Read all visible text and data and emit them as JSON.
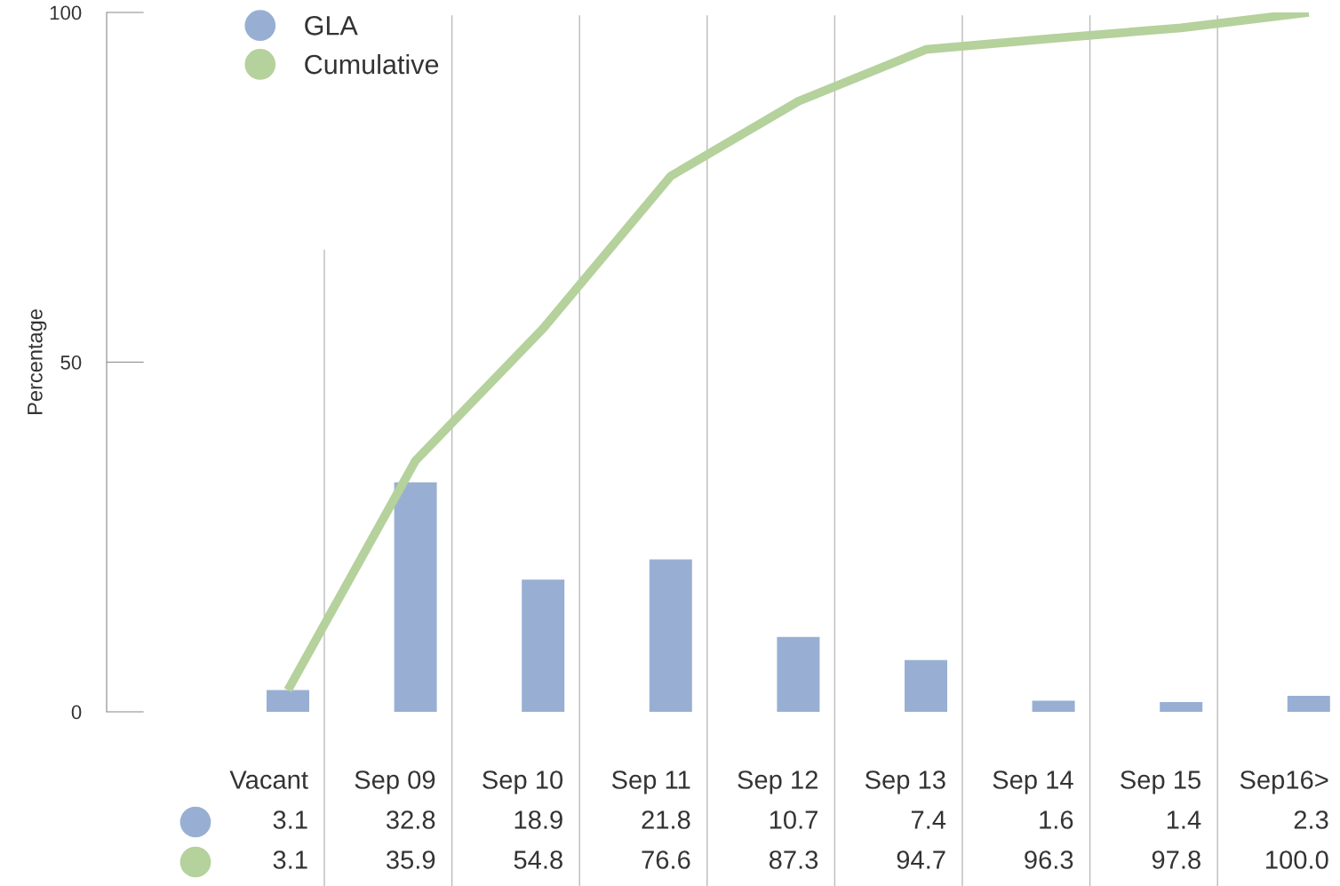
{
  "chart_data": {
    "type": "bar",
    "ylabel": "Percentage",
    "categories": [
      "Vacant",
      "Sep 09",
      "Sep 10",
      "Sep 11",
      "Sep 12",
      "Sep 13",
      "Sep 14",
      "Sep 15",
      "Sep16>"
    ],
    "series": [
      {
        "name": "GLA",
        "color": "#98afd3",
        "values": [
          3.1,
          32.8,
          18.9,
          21.8,
          10.7,
          7.4,
          1.6,
          1.4,
          2.3
        ],
        "value_labels": [
          "3.1",
          "32.8",
          "18.9",
          "21.8",
          "10.7",
          "7.4",
          "1.6",
          "1.4",
          "2.3"
        ]
      },
      {
        "name": "Cumulative",
        "type": "line",
        "color": "#b5d19c",
        "values": [
          3.1,
          35.9,
          54.8,
          76.6,
          87.3,
          94.7,
          96.3,
          97.8,
          100.0
        ],
        "value_labels": [
          "3.1",
          "35.9",
          "54.8",
          "76.6",
          "87.3",
          "94.7",
          "96.3",
          "97.8",
          "100.0"
        ]
      }
    ],
    "ylim": [
      0,
      100
    ],
    "yticks": [
      0,
      50,
      100
    ],
    "grid": "x",
    "legend": "top left",
    "marker": "none",
    "line_style": "solid"
  }
}
